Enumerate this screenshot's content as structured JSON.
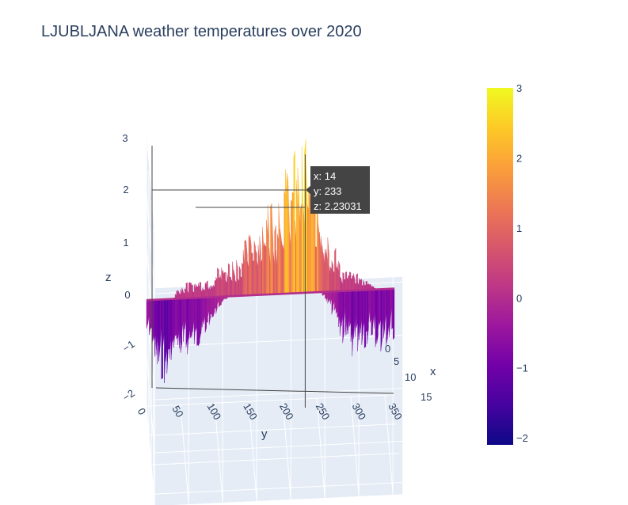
{
  "chart_data": {
    "type": "surface",
    "title": "LJUBLJANA weather temperatures over 2020",
    "x_axis": {
      "label": "x",
      "ticks": [
        "0",
        "5",
        "10",
        "15"
      ],
      "range": [
        0,
        17
      ]
    },
    "y_axis": {
      "label": "y",
      "ticks": [
        "0",
        "50",
        "100",
        "150",
        "200",
        "250",
        "300",
        "350"
      ],
      "range": [
        0,
        365
      ]
    },
    "z_axis": {
      "label": "z",
      "ticks": [
        "−2",
        "−1",
        "0",
        "1",
        "2",
        "3"
      ],
      "range": [
        -2,
        3
      ]
    },
    "colorbar": {
      "min": -2.1,
      "max": 3.0,
      "ticks": [
        "3",
        "2",
        "1",
        "0",
        "−1",
        "−2"
      ],
      "colorscale": [
        "#0d0887",
        "#46039f",
        "#7201a8",
        "#9c179e",
        "#bd3786",
        "#d8576b",
        "#ed7953",
        "#fb9f3a",
        "#fdca26",
        "#f0f921"
      ]
    },
    "profile_y": [
      0,
      15,
      30,
      45,
      60,
      75,
      90,
      105,
      120,
      135,
      150,
      165,
      180,
      195,
      210,
      225,
      233,
      240,
      255,
      270,
      285,
      300,
      315,
      330,
      345,
      364
    ],
    "profile_z_max": [
      -0.3,
      -0.4,
      -0.3,
      0.2,
      0.25,
      0.3,
      0.35,
      0.5,
      0.6,
      0.7,
      1.0,
      1.3,
      1.6,
      1.9,
      2.1,
      2.3,
      2.5,
      2.1,
      1.5,
      0.9,
      0.4,
      0.3,
      0.2,
      0.1,
      -0.1,
      -0.2
    ],
    "profile_z_min": [
      -0.6,
      -1.2,
      -1.4,
      -1.0,
      -0.9,
      -0.8,
      -0.6,
      -0.2,
      0.0,
      0.0,
      0.0,
      0.0,
      0.0,
      0.0,
      0.0,
      0.0,
      0.0,
      0.0,
      0.0,
      -0.3,
      -0.8,
      -1.1,
      -1.0,
      -0.9,
      -1.0,
      -0.9
    ],
    "hover": {
      "x_text": "x: 14",
      "y_text": "y: 233",
      "z_text": "z: 2.23031"
    }
  }
}
